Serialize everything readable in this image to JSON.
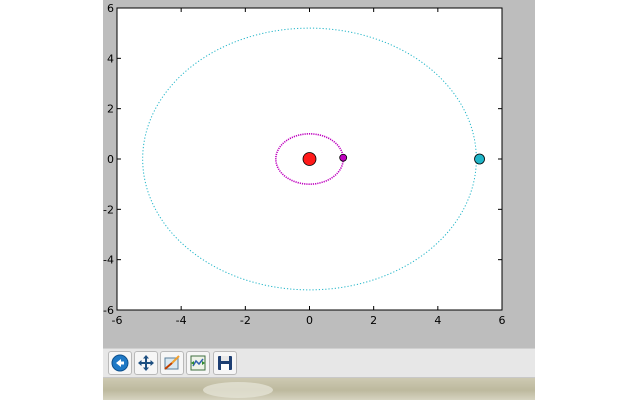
{
  "toolbar": {
    "buttons": [
      {
        "icon": "home-icon"
      },
      {
        "icon": "pan-icon"
      },
      {
        "icon": "zoom-icon"
      },
      {
        "icon": "subplots-icon"
      },
      {
        "icon": "save-icon"
      }
    ]
  },
  "chart_data": {
    "type": "scatter",
    "title": "",
    "xlabel": "",
    "ylabel": "",
    "xlim": [
      -6,
      6
    ],
    "ylim": [
      -6,
      6
    ],
    "xticks": [
      "-6",
      "-4",
      "-2",
      "0",
      "2",
      "4",
      "6"
    ],
    "yticks": [
      "-6",
      "-4",
      "-2",
      "0",
      "2",
      "4",
      "6"
    ],
    "grid": false,
    "orbits": [
      {
        "center": [
          0,
          0
        ],
        "rx": 1.05,
        "ry": 1.0,
        "color": "#bf00bf",
        "style": "dotted"
      },
      {
        "center": [
          0,
          0
        ],
        "rx": 5.2,
        "ry": 5.2,
        "color": "#20b5c8",
        "style": "dotted"
      }
    ],
    "bodies": [
      {
        "x": 0.0,
        "y": 0.0,
        "color": "#ff1a1a",
        "size": "large"
      },
      {
        "x": 1.05,
        "y": 0.05,
        "color": "#bf00bf",
        "size": "small"
      },
      {
        "x": 5.3,
        "y": 0.0,
        "color": "#20b5c8",
        "size": "medium"
      }
    ]
  }
}
